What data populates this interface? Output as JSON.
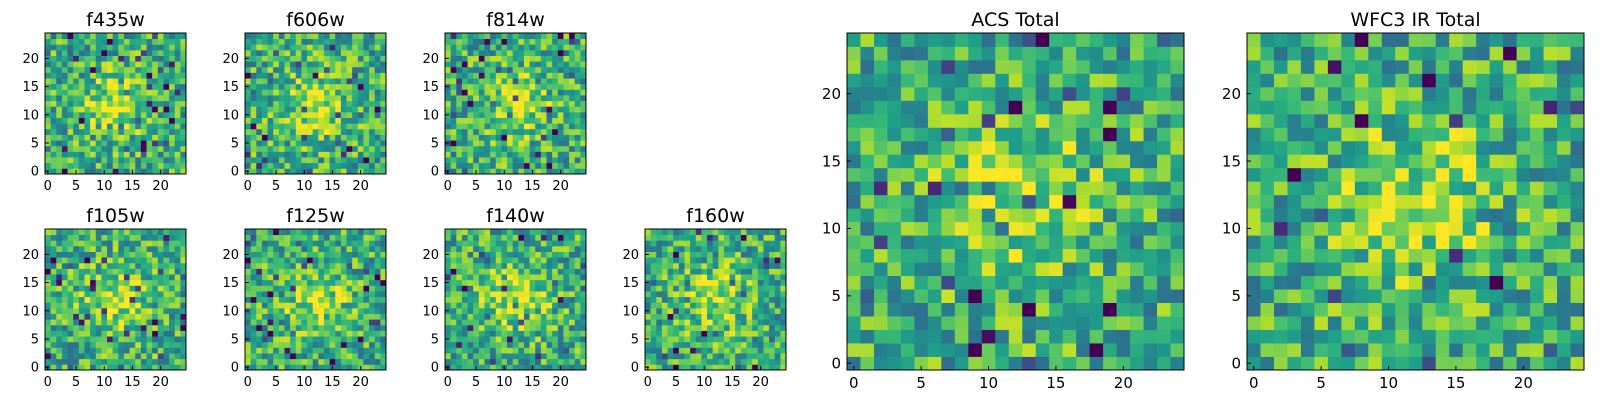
{
  "chart_data": [
    {
      "type": "heatmap",
      "title": "f435w",
      "xlim": [
        0,
        24
      ],
      "ylim": [
        0,
        24
      ],
      "x_ticks": [
        0,
        5,
        10,
        15,
        20
      ],
      "y_ticks": [
        0,
        5,
        10,
        15,
        20
      ],
      "grid": false,
      "seed": 11
    },
    {
      "type": "heatmap",
      "title": "f606w",
      "xlim": [
        0,
        24
      ],
      "ylim": [
        0,
        24
      ],
      "x_ticks": [
        0,
        5,
        10,
        15,
        20
      ],
      "y_ticks": [
        0,
        5,
        10,
        15,
        20
      ],
      "grid": false,
      "seed": 23
    },
    {
      "type": "heatmap",
      "title": "f814w",
      "xlim": [
        0,
        24
      ],
      "ylim": [
        0,
        24
      ],
      "x_ticks": [
        0,
        5,
        10,
        15,
        20
      ],
      "y_ticks": [
        0,
        5,
        10,
        15,
        20
      ],
      "grid": false,
      "seed": 37
    },
    {
      "type": "heatmap",
      "title": "f105w",
      "xlim": [
        0,
        24
      ],
      "ylim": [
        0,
        24
      ],
      "x_ticks": [
        0,
        5,
        10,
        15,
        20
      ],
      "y_ticks": [
        0,
        5,
        10,
        15,
        20
      ],
      "grid": false,
      "seed": 41
    },
    {
      "type": "heatmap",
      "title": "f125w",
      "xlim": [
        0,
        24
      ],
      "ylim": [
        0,
        24
      ],
      "x_ticks": [
        0,
        5,
        10,
        15,
        20
      ],
      "y_ticks": [
        0,
        5,
        10,
        15,
        20
      ],
      "grid": false,
      "seed": 53
    },
    {
      "type": "heatmap",
      "title": "f140w",
      "xlim": [
        0,
        24
      ],
      "ylim": [
        0,
        24
      ],
      "x_ticks": [
        0,
        5,
        10,
        15,
        20
      ],
      "y_ticks": [
        0,
        5,
        10,
        15,
        20
      ],
      "grid": false,
      "seed": 67
    },
    {
      "type": "heatmap",
      "title": "f160w",
      "xlim": [
        0,
        24
      ],
      "ylim": [
        0,
        24
      ],
      "x_ticks": [
        0,
        5,
        10,
        15,
        20
      ],
      "y_ticks": [
        0,
        5,
        10,
        15,
        20
      ],
      "grid": false,
      "seed": 79
    },
    {
      "type": "heatmap",
      "title": "ACS Total",
      "xlim": [
        0,
        24
      ],
      "ylim": [
        0,
        24
      ],
      "x_ticks": [
        0,
        5,
        10,
        15,
        20
      ],
      "y_ticks": [
        0,
        5,
        10,
        15,
        20
      ],
      "grid": false,
      "seed": 83
    },
    {
      "type": "heatmap",
      "title": "WFC3 IR Total",
      "xlim": [
        0,
        24
      ],
      "ylim": [
        0,
        24
      ],
      "x_ticks": [
        0,
        5,
        10,
        15,
        20
      ],
      "y_ticks": [
        0,
        5,
        10,
        15,
        20
      ],
      "grid": false,
      "seed": 97
    }
  ]
}
